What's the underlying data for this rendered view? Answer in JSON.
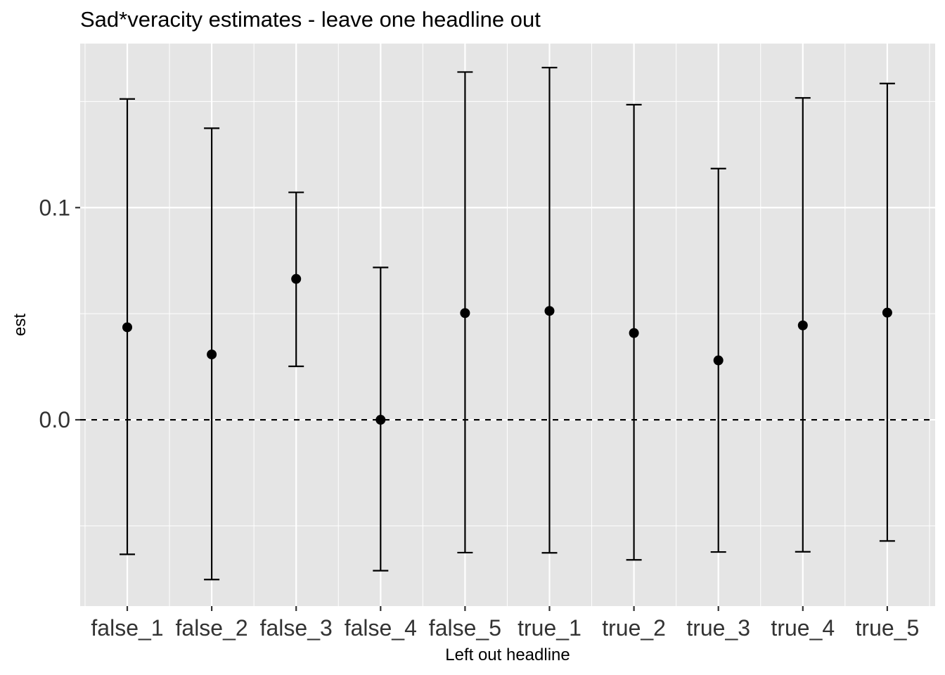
{
  "chart_data": {
    "type": "errorbar",
    "title": "Sad*veracity estimates - leave one headline out",
    "xlabel": "Left out headline",
    "ylabel": "est",
    "categories": [
      "false_1",
      "false_2",
      "false_3",
      "false_4",
      "false_5",
      "true_1",
      "true_2",
      "true_3",
      "true_4",
      "true_5"
    ],
    "estimates": [
      0.0436,
      0.0308,
      0.0664,
      0.0,
      0.0503,
      0.0513,
      0.0409,
      0.028,
      0.0445,
      0.0505
    ],
    "lower": [
      -0.0634,
      -0.0753,
      0.0252,
      -0.0711,
      -0.0626,
      -0.0627,
      -0.066,
      -0.0623,
      -0.0622,
      -0.0571
    ],
    "upper": [
      0.1512,
      0.1374,
      0.1072,
      0.0718,
      0.1639,
      0.166,
      0.1485,
      0.1184,
      0.1517,
      0.1585
    ],
    "y_ticks": [
      0.0,
      0.1
    ],
    "y_tick_labels": [
      "0.0",
      "0.1"
    ],
    "ylim": [
      -0.0878,
      0.1773
    ],
    "reference_line": {
      "y": 0,
      "style": "dashed"
    },
    "grid": true,
    "colors": {
      "panel": "#e5e5e5",
      "grid": "#ffffff",
      "marks": "#000000"
    }
  }
}
